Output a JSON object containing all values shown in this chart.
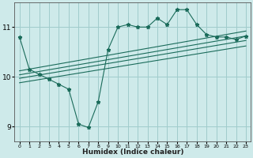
{
  "title": "",
  "xlabel": "Humidex (Indice chaleur)",
  "ylabel": "",
  "bg_color": "#ceeaea",
  "grid_color": "#a0cccc",
  "line_color": "#1a6b5a",
  "x_data": [
    0,
    1,
    2,
    3,
    4,
    5,
    6,
    7,
    8,
    9,
    10,
    11,
    12,
    13,
    14,
    15,
    16,
    17,
    18,
    19,
    20,
    21,
    22,
    23
  ],
  "y_main": [
    10.8,
    10.15,
    10.05,
    9.95,
    9.85,
    9.75,
    9.05,
    8.98,
    9.5,
    10.55,
    11.0,
    11.05,
    11.0,
    11.0,
    11.18,
    11.05,
    11.35,
    11.35,
    11.05,
    10.85,
    10.8,
    10.8,
    10.75,
    10.82
  ],
  "ylim": [
    8.7,
    11.5
  ],
  "yticks": [
    9,
    10,
    11
  ],
  "xlim": [
    -0.5,
    23.5
  ],
  "reg_lines": [
    {
      "x0": 0,
      "y0": 10.12,
      "x1": 23,
      "y1": 10.92
    },
    {
      "x0": 0,
      "y0": 10.04,
      "x1": 23,
      "y1": 10.82
    },
    {
      "x0": 0,
      "y0": 9.97,
      "x1": 23,
      "y1": 10.73
    },
    {
      "x0": 0,
      "y0": 9.88,
      "x1": 23,
      "y1": 10.62
    }
  ]
}
